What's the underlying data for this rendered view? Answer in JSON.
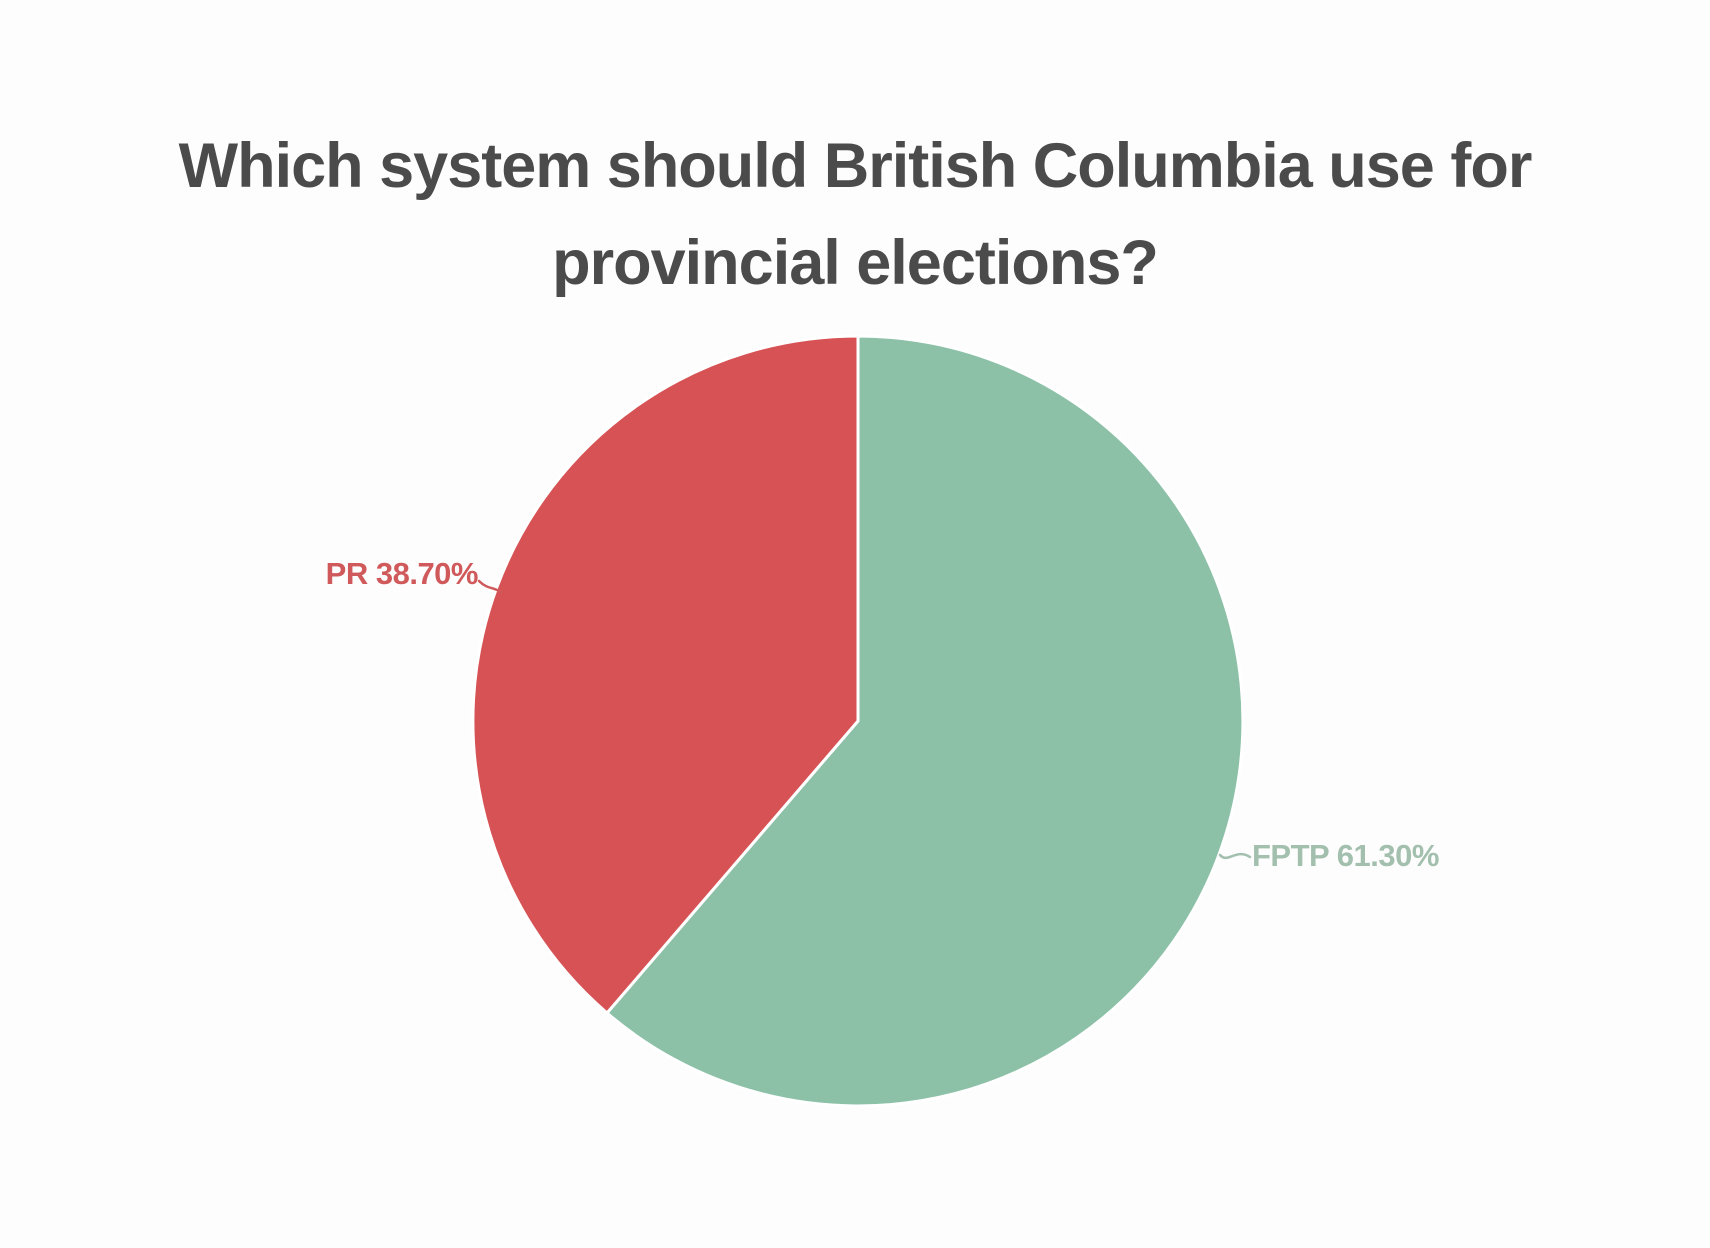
{
  "chart_data": {
    "type": "pie",
    "title": "Which system should British Columbia use for provincial elections?",
    "title_lines": [
      "Which system should British Columbia use for",
      "provincial elections?"
    ],
    "title_color": "#4b4b4b",
    "background": "#fdfdfd",
    "start_angle": "12-o-clock",
    "direction": "clockwise",
    "legend_position": "none",
    "labels_outside": true,
    "slices": [
      {
        "label": "FPTP",
        "value": 61.3,
        "display": "FPTP 61.30%",
        "color": "#8cc1a8",
        "label_color": "#a3bfae"
      },
      {
        "label": "PR",
        "value": 38.7,
        "display": "PR 38.70%",
        "color": "#d75254",
        "label_color": "#d0595b"
      }
    ]
  }
}
